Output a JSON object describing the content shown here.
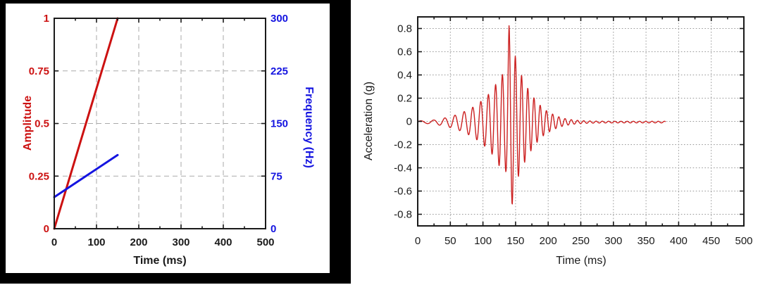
{
  "chart_data": [
    {
      "type": "line",
      "title": "",
      "xlabel": "Time (ms)",
      "ylabel_left": "Amplitude",
      "ylabel_right": "Frequency (Hz)",
      "xlim": [
        0,
        500
      ],
      "x_ticks": [
        0,
        100,
        200,
        300,
        400,
        500
      ],
      "x_minor_ticks": [
        50,
        150,
        250,
        350,
        450
      ],
      "ylim_left": [
        0,
        1
      ],
      "y_left_ticks": [
        "0",
        "0.25",
        "0.5",
        "0.75",
        "1"
      ],
      "y_left_values": [
        0,
        0.25,
        0.5,
        0.75,
        1
      ],
      "ylim_right": [
        0,
        300
      ],
      "y_right_ticks": [
        "0",
        "75",
        "150",
        "225",
        "300"
      ],
      "y_right_values": [
        0,
        75,
        150,
        225,
        300
      ],
      "grid": "dashed",
      "legend": "none",
      "colors": {
        "amplitude": "#cc1111",
        "frequency": "#1414e0",
        "grid": "#aaaaaa",
        "axis": "#1a1a1a"
      },
      "series": [
        {
          "name": "amplitude_ramp",
          "axis": "left",
          "points": [
            [
              0,
              0
            ],
            [
              150,
              1
            ]
          ]
        },
        {
          "name": "frequency_sweep",
          "axis": "right",
          "points": [
            [
              0,
              45
            ],
            [
              150,
              105
            ]
          ]
        }
      ]
    },
    {
      "type": "line",
      "title": "",
      "xlabel": "Time (ms)",
      "ylabel": "Acceleration (g)",
      "xlim": [
        0,
        500
      ],
      "x_ticks": [
        0,
        50,
        100,
        150,
        200,
        250,
        300,
        350,
        400,
        450,
        500
      ],
      "x_minor_step": 25,
      "ylim": [
        -0.9,
        0.9
      ],
      "y_ticks": [
        "0.8",
        "0.6",
        "0.4",
        "0.2",
        "0",
        "-0.2",
        "-0.4",
        "-0.6",
        "-0.8"
      ],
      "y_values": [
        0.8,
        0.6,
        0.4,
        0.2,
        0,
        -0.2,
        -0.4,
        -0.6,
        -0.8
      ],
      "grid": "dotted",
      "legend": "none",
      "colors": {
        "waveform": "#cc2222",
        "grid": "#999999",
        "axis": "#1a1a1a"
      },
      "signal": {
        "description": "chirp wavelet: amplitude envelope times swept sine",
        "t_start_ms": 0,
        "t_end_ms": 380,
        "dt_ms": 0.5,
        "dc_offset_g": -0.006,
        "freq_start_hz": 45,
        "freq_slope_hz_per_ms": 0.4,
        "freq_ramp_end_ms": 150,
        "phase_offset_rad": 0.19,
        "peak": {
          "t_ms": 140,
          "value_g": 0.82
        },
        "trough": {
          "t_ms": 145,
          "value_g": -0.75
        },
        "envelope_g": [
          [
            0,
            0.01
          ],
          [
            15,
            0.013
          ],
          [
            25,
            0.018
          ],
          [
            35,
            0.028
          ],
          [
            45,
            0.04
          ],
          [
            55,
            0.055
          ],
          [
            65,
            0.075
          ],
          [
            75,
            0.1
          ],
          [
            85,
            0.13
          ],
          [
            95,
            0.17
          ],
          [
            105,
            0.22
          ],
          [
            112,
            0.26
          ],
          [
            118,
            0.31
          ],
          [
            124,
            0.37
          ],
          [
            129,
            0.42
          ],
          [
            133,
            0.38
          ],
          [
            136,
            0.45
          ],
          [
            138,
            0.62
          ],
          [
            140,
            0.83
          ],
          [
            142,
            0.8
          ],
          [
            144,
            0.74
          ],
          [
            147,
            0.64
          ],
          [
            150,
            0.56
          ],
          [
            153,
            0.49
          ],
          [
            157,
            0.43
          ],
          [
            162,
            0.37
          ],
          [
            167,
            0.31
          ],
          [
            172,
            0.26
          ],
          [
            177,
            0.22
          ],
          [
            182,
            0.18
          ],
          [
            187,
            0.15
          ],
          [
            192,
            0.12
          ],
          [
            197,
            0.1
          ],
          [
            203,
            0.08
          ],
          [
            210,
            0.06
          ],
          [
            218,
            0.042
          ],
          [
            226,
            0.03
          ],
          [
            234,
            0.022
          ],
          [
            242,
            0.016
          ],
          [
            252,
            0.012
          ],
          [
            262,
            0.01
          ],
          [
            275,
            0.008
          ],
          [
            300,
            0.007
          ],
          [
            340,
            0.007
          ],
          [
            380,
            0.007
          ]
        ]
      }
    }
  ]
}
